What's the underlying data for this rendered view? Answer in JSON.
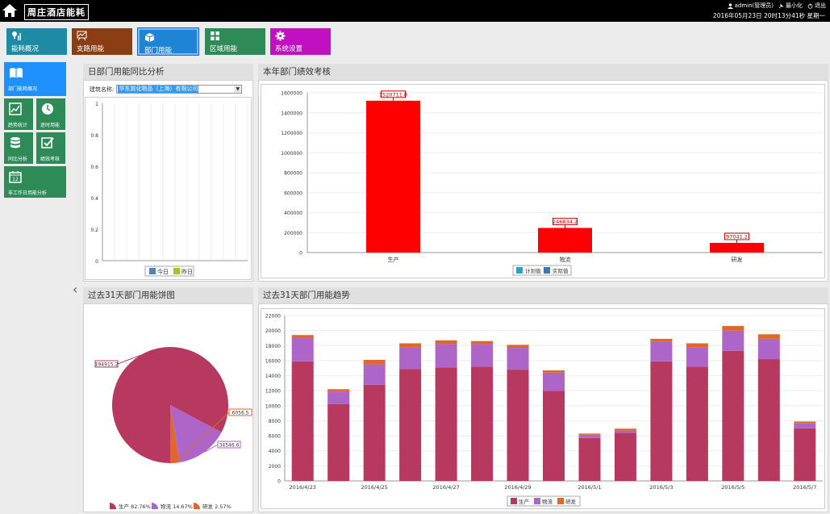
{
  "header": {
    "brand": "周庄酒店能耗",
    "user": "admin(管理员)",
    "minimize": "最小化",
    "logout": "退出",
    "datetime": "2016年05月23日 20时13分41秒 星期一"
  },
  "nav": [
    {
      "label": "能耗概况",
      "color": "#1f8aa3"
    },
    {
      "label": "支路用能",
      "color": "#8b3e14"
    },
    {
      "label": "部门用能",
      "color": "#1e84d6"
    },
    {
      "label": "区域用能",
      "color": "#2e8b57"
    },
    {
      "label": "系统设置",
      "color": "#c010c0"
    }
  ],
  "sidebar": [
    {
      "label": "部门能耗概况"
    },
    {
      "label": "趋势统计"
    },
    {
      "label": "逐时用能"
    },
    {
      "label": "同比分析"
    },
    {
      "label": "绩效考核"
    },
    {
      "label": "非工作日用能分析"
    }
  ],
  "panels": {
    "daily": {
      "title": "日部门用能同比分析",
      "building_label": "建筑名称:",
      "building_value": "华东宾化物品（上海）有限公司"
    },
    "annual": {
      "title": "本年部门绩效考核"
    },
    "pie": {
      "title": "过去31天部门用能饼图"
    },
    "trend": {
      "title": "过去31天部门用能趋势"
    }
  },
  "chart_data": [
    {
      "type": "line",
      "yticks": [
        "1",
        "0.8",
        "0.6",
        "0.4",
        "0.2",
        "0"
      ],
      "ylim": [
        0,
        1
      ],
      "series": [
        {
          "name": "今日",
          "color": "#4a86c5"
        },
        {
          "name": "昨日",
          "color": "#a3c12c"
        }
      ]
    },
    {
      "type": "bar",
      "categories": [
        "生产",
        "物流",
        "研发"
      ],
      "yticks": [
        "1600000",
        "1400000",
        "1200000",
        "1000000",
        "800000",
        "600000",
        "400000",
        "200000",
        "0"
      ],
      "ylim": [
        0,
        1600000
      ],
      "series": [
        {
          "name": "计划值",
          "color": "#3b8ea8",
          "values": [
            null,
            null,
            null
          ]
        },
        {
          "name": "实际值",
          "color": "#ff0000",
          "values": [
            1520711.8,
            246834.2,
            97041.2
          ]
        }
      ],
      "data_labels": [
        "1520711.8",
        "246834.2",
        "97041.2"
      ],
      "legend": [
        {
          "name": "计划值",
          "color": "#2fa0c8"
        },
        {
          "name": "实际值",
          "color": "#3c78b0"
        }
      ]
    },
    {
      "type": "pie",
      "slices": [
        {
          "name": "生产",
          "value": 194915.2,
          "label": "194915.2",
          "percent": "82.76%",
          "color": "#b8395f"
        },
        {
          "name": "物流",
          "value": 34546.6,
          "label": "34546.6",
          "percent": "14.67%",
          "color": "#ad66c8"
        },
        {
          "name": "研发",
          "value": 6056.5,
          "label": "6056.5",
          "percent": "2.57%",
          "color": "#e0672a"
        }
      ]
    },
    {
      "type": "bar",
      "stacked": true,
      "ylim": [
        0,
        22000
      ],
      "yticks": [
        "22000",
        "20000",
        "18000",
        "16000",
        "14000",
        "12000",
        "10000",
        "8000",
        "6000",
        "4000",
        "2000",
        "0"
      ],
      "xlabels": [
        "2016/4/23",
        "2016/4/25",
        "2016/4/27",
        "2016/4/29",
        "2016/5/1",
        "2016/5/3",
        "2016/5/5",
        "2016/5/7"
      ],
      "series": [
        {
          "name": "生产",
          "color": "#b8395f",
          "values": [
            15900,
            10200,
            12800,
            14900,
            15100,
            15200,
            14800,
            12000,
            5700,
            6400,
            15900,
            15200,
            17300,
            16200,
            7000
          ]
        },
        {
          "name": "物流",
          "color": "#ad66c8",
          "values": [
            3100,
            1700,
            2700,
            2900,
            3100,
            3000,
            2900,
            2400,
            450,
            300,
            2600,
            2600,
            2700,
            2700,
            700
          ]
        },
        {
          "name": "研发",
          "color": "#e0672a",
          "values": [
            400,
            300,
            600,
            500,
            500,
            400,
            400,
            300,
            150,
            250,
            400,
            500,
            600,
            600,
            200
          ]
        }
      ]
    }
  ]
}
